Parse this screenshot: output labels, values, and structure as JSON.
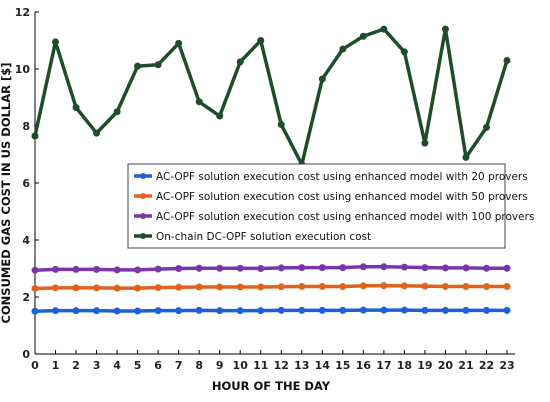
{
  "chart_data": {
    "type": "line",
    "xlabel": "HOUR OF THE DAY",
    "ylabel": "CONSUMED GAS COST IN US DOLLAR [$]",
    "xlim": [
      0,
      23
    ],
    "ylim": [
      0,
      12
    ],
    "xticks": [
      0,
      1,
      2,
      3,
      4,
      5,
      6,
      7,
      8,
      9,
      10,
      11,
      12,
      13,
      14,
      15,
      16,
      17,
      18,
      19,
      20,
      21,
      22,
      23
    ],
    "yticks": [
      0,
      2,
      4,
      6,
      8,
      10,
      12
    ],
    "grid": false,
    "legend_position": "center-right",
    "x": [
      0,
      1,
      2,
      3,
      4,
      5,
      6,
      7,
      8,
      9,
      10,
      11,
      12,
      13,
      14,
      15,
      16,
      17,
      18,
      19,
      20,
      21,
      22,
      23
    ],
    "series": [
      {
        "name": "AC-OPF solution execution cost using enhanced model with 20 provers",
        "color": "#1f5fd6",
        "values": [
          1.5,
          1.52,
          1.52,
          1.52,
          1.51,
          1.51,
          1.52,
          1.52,
          1.53,
          1.52,
          1.52,
          1.52,
          1.53,
          1.53,
          1.53,
          1.53,
          1.54,
          1.54,
          1.54,
          1.53,
          1.53,
          1.53,
          1.53,
          1.53
        ]
      },
      {
        "name": "AC-OPF solution execution cost using enhanced model with 50 provers",
        "color": "#e0631a",
        "values": [
          2.3,
          2.32,
          2.32,
          2.32,
          2.31,
          2.31,
          2.33,
          2.34,
          2.35,
          2.35,
          2.35,
          2.35,
          2.36,
          2.37,
          2.37,
          2.37,
          2.39,
          2.4,
          2.39,
          2.38,
          2.37,
          2.37,
          2.37,
          2.37
        ]
      },
      {
        "name": "AC-OPF solution execution cost using enhanced model with 100 provers",
        "color": "#7a35a8",
        "values": [
          2.94,
          2.97,
          2.97,
          2.97,
          2.95,
          2.95,
          2.98,
          3.0,
          3.01,
          3.01,
          3.01,
          3.0,
          3.02,
          3.03,
          3.03,
          3.03,
          3.06,
          3.06,
          3.05,
          3.03,
          3.02,
          3.02,
          3.01,
          3.01
        ]
      },
      {
        "name": "On-chain DC-OPF solution execution cost",
        "color": "#1e4d2b",
        "values": [
          7.65,
          10.95,
          8.65,
          7.75,
          8.5,
          10.1,
          10.15,
          10.9,
          8.85,
          8.35,
          10.25,
          11.0,
          8.05,
          6.65,
          9.65,
          10.7,
          11.15,
          11.4,
          10.6,
          7.4,
          11.4,
          6.9,
          7.95,
          10.3
        ]
      }
    ]
  }
}
